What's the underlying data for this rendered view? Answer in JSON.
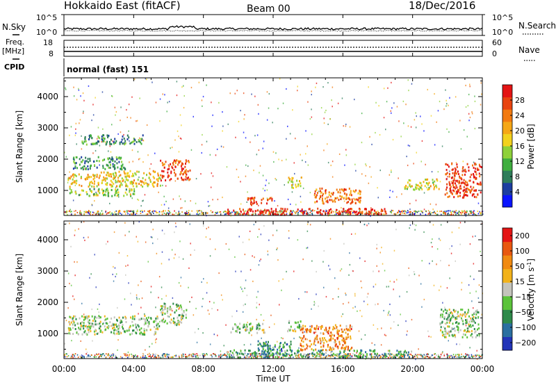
{
  "header": {
    "title": "Hokkaido East (fitACF)",
    "beam": "Beam 00",
    "date": "18/Dec/2016"
  },
  "top_panels": {
    "nsky_label": "N.Sky",
    "nsearch_label": "N.Search",
    "noise_tick_top": "10^5",
    "noise_tick_bottom": "10^0",
    "freq_label_1": "Freq.",
    "freq_label_2": "[MHz]",
    "freq_tick_top": "18",
    "freq_tick_bottom": "8",
    "nave_label": "Nave",
    "nave_tick_top": "60",
    "nave_tick_bottom": "0",
    "cpid_label": "CPID",
    "cpid_text": "normal (fast) 151"
  },
  "chart_data": [
    {
      "type": "heatmap",
      "name": "power",
      "ylabel": "Slant Range [km]",
      "yticks": [
        "1000",
        "2000",
        "3000",
        "4000"
      ],
      "ylim": [
        200,
        4600
      ],
      "xlim_hours": [
        0,
        24
      ],
      "colorbar_label": "Power [dB]",
      "colorbar_ticks": [
        "4",
        "8",
        "12",
        "16",
        "20",
        "24",
        "28"
      ],
      "colors": [
        "#0a14ff",
        "#1c3ea0",
        "#2e7d5a",
        "#3fae3f",
        "#8ed13a",
        "#f2d21e",
        "#f5a716",
        "#f27a10",
        "#e84410",
        "#e41414"
      ],
      "regions": [
        {
          "t0": 0.2,
          "t1": 2.0,
          "r0": 1150,
          "r1": 1550,
          "level": 0.62
        },
        {
          "t0": 2.0,
          "t1": 5.5,
          "r0": 1150,
          "r1": 1650,
          "level": 0.58
        },
        {
          "t0": 5.5,
          "t1": 7.2,
          "r0": 1350,
          "r1": 2000,
          "level": 0.85
        },
        {
          "t0": 0.2,
          "t1": 4.0,
          "r0": 850,
          "r1": 1100,
          "level": 0.45
        },
        {
          "t0": 0.5,
          "t1": 3.5,
          "r0": 1700,
          "r1": 2100,
          "level": 0.3
        },
        {
          "t0": 1.0,
          "t1": 4.5,
          "r0": 2500,
          "r1": 2800,
          "level": 0.28
        },
        {
          "t0": 9.3,
          "t1": 18.5,
          "r0": 250,
          "r1": 450,
          "level": 0.95
        },
        {
          "t0": 10.5,
          "t1": 12.0,
          "r0": 550,
          "r1": 800,
          "level": 0.85
        },
        {
          "t0": 14.3,
          "t1": 17.0,
          "r0": 600,
          "r1": 1100,
          "level": 0.75
        },
        {
          "t0": 12.8,
          "t1": 13.6,
          "r0": 1100,
          "r1": 1450,
          "level": 0.6
        },
        {
          "t0": 19.5,
          "t1": 21.5,
          "r0": 1050,
          "r1": 1400,
          "level": 0.55
        },
        {
          "t0": 21.8,
          "t1": 23.9,
          "r0": 800,
          "r1": 1900,
          "level": 0.88
        }
      ]
    },
    {
      "type": "heatmap",
      "name": "velocity",
      "ylabel": "Slant Range [km]",
      "yticks": [
        "1000",
        "2000",
        "3000",
        "4000"
      ],
      "ylim": [
        200,
        4600
      ],
      "xlim_hours": [
        0,
        24
      ],
      "colorbar_label": "Velocity [m s^-1]",
      "colorbar_ticks": [
        "200",
        "100",
        "50",
        "15",
        "-15",
        "-50",
        "-100",
        "-200"
      ],
      "colors": [
        "#2234b8",
        "#2a6fa0",
        "#2e8a4a",
        "#5bc33a",
        "#c4c4bc",
        "#f2b21a",
        "#f08a12",
        "#e85810",
        "#e41414"
      ],
      "regions": [
        {
          "t0": 0.2,
          "t1": 5.5,
          "r0": 1000,
          "r1": 1600,
          "level": 0.44
        },
        {
          "t0": 5.5,
          "t1": 7.0,
          "r0": 1300,
          "r1": 2000,
          "level": 0.44
        },
        {
          "t0": 9.3,
          "t1": 20.0,
          "r0": 250,
          "r1": 500,
          "level": 0.3
        },
        {
          "t0": 11.0,
          "t1": 13.0,
          "r0": 450,
          "r1": 800,
          "level": 0.25
        },
        {
          "t0": 13.5,
          "t1": 16.5,
          "r0": 500,
          "r1": 1300,
          "level": 0.72
        },
        {
          "t0": 12.8,
          "t1": 13.6,
          "r0": 1100,
          "r1": 1450,
          "level": 0.44
        },
        {
          "t0": 9.5,
          "t1": 11.5,
          "r0": 1050,
          "r1": 1350,
          "level": 0.44
        },
        {
          "t0": 21.5,
          "t1": 23.8,
          "r0": 900,
          "r1": 1800,
          "level": 0.44
        }
      ]
    }
  ],
  "xaxis": {
    "label": "Time UT",
    "ticks": [
      "00:00",
      "04:00",
      "08:00",
      "12:00",
      "16:00",
      "20:00",
      "00:00"
    ]
  }
}
